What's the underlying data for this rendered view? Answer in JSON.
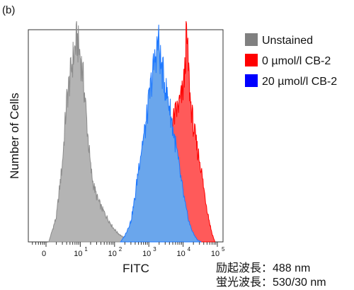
{
  "panel_label": "(b)",
  "chart_data": {
    "type": "area",
    "xlabel": "FITC",
    "ylabel": "Number of Cells",
    "xscale": "log",
    "xlim": [
      0.3,
      200000
    ],
    "x_ticks": [
      {
        "value": 1,
        "label": "0"
      },
      {
        "value": 10,
        "label": "10"
      },
      {
        "value": 100,
        "label": "10"
      },
      {
        "value": 1000,
        "label": "10"
      },
      {
        "value": 10000,
        "label": "10"
      },
      {
        "value": 100000,
        "label": "10"
      }
    ],
    "x_tick_exponents": [
      "",
      "1",
      "2",
      "3",
      "4",
      "5"
    ],
    "legend_position": "right",
    "series": [
      {
        "name": "Unstained",
        "color": "#8c8c8c",
        "fill": "#b4b4b4",
        "x": [
          1.2,
          2,
          3,
          4,
          6,
          8,
          10,
          12,
          14,
          16,
          18,
          20,
          24,
          30,
          40,
          55,
          70,
          90,
          120,
          170,
          220,
          260
        ],
        "y": [
          0,
          12,
          38,
          68,
          88,
          98,
          90,
          80,
          68,
          55,
          45,
          36,
          28,
          22,
          17,
          13,
          10,
          7,
          4.5,
          2.5,
          1,
          0
        ]
      },
      {
        "name": "0 µmol/l CB-2",
        "color": "#ff0000",
        "fill": "#ff5a5a",
        "x": [
          1000,
          1400,
          2000,
          3000,
          4500,
          6000,
          7500,
          9000,
          10000,
          11000,
          12500,
          14000,
          16000,
          20000,
          25000,
          32000,
          40000,
          50000,
          60000,
          70000,
          85000
        ],
        "y": [
          0,
          14,
          30,
          46,
          56,
          62,
          66,
          70,
          74,
          80,
          100,
          88,
          70,
          56,
          46,
          38,
          26,
          16,
          9,
          4,
          0
        ]
      },
      {
        "name": "20 µmol/l CB-2",
        "color": "#1e78ff",
        "fill": "#6aa6ec",
        "x": [
          150,
          200,
          300,
          400,
          500,
          650,
          800,
          900,
          1000,
          1200,
          1500,
          1900,
          2300,
          2700,
          3200,
          4000,
          5000,
          6500,
          8000,
          10000,
          12500,
          16000,
          20000,
          26000,
          34000
        ],
        "y": [
          0,
          3,
          10,
          22,
          36,
          48,
          55,
          62,
          68,
          78,
          88,
          98,
          84,
          80,
          73,
          66,
          55,
          44,
          34,
          24,
          15,
          8,
          4,
          1,
          0
        ]
      }
    ]
  },
  "annotations": {
    "line1": "励起波長：488 nm",
    "line2": "蛍光波長：530/30 nm"
  }
}
